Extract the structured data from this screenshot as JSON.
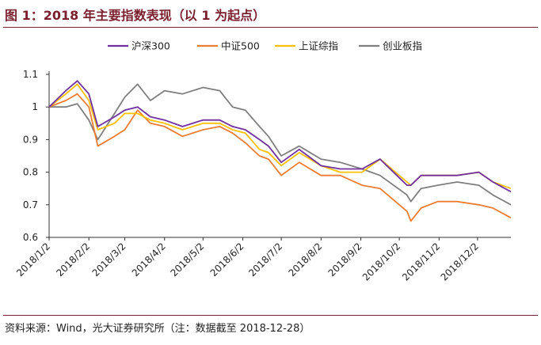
{
  "title": "图 1：2018 年主要指数表现（以 1 为起点）",
  "source": "资料来源：Wind，光大证券研究所（注：数据截至 2018-12-28）",
  "chart_data": {
    "type": "line",
    "title": "",
    "xlabel": "",
    "ylabel": "",
    "ylim": [
      0.6,
      1.1
    ],
    "yticks": [
      0.6,
      0.7,
      0.8,
      0.9,
      1,
      1.1
    ],
    "ytick_labels": [
      "0.6",
      "0.7",
      "0.8",
      "0.9",
      "1",
      "1.1"
    ],
    "grid": false,
    "legend_position": "top",
    "x_dates": [
      "2018/1/2",
      "2018/1/15",
      "2018/1/24",
      "2018/2/2",
      "2018/2/9",
      "2018/2/22",
      "2018/3/2",
      "2018/3/12",
      "2018/3/22",
      "2018/4/2",
      "2018/4/16",
      "2018/5/2",
      "2018/5/15",
      "2018/5/25",
      "2018/6/4",
      "2018/6/15",
      "2018/6/22",
      "2018/7/2",
      "2018/7/16",
      "2018/8/2",
      "2018/8/17",
      "2018/9/3",
      "2018/9/17",
      "2018/10/8",
      "2018/10/11",
      "2018/10/19",
      "2018/11/1",
      "2018/11/16",
      "2018/12/3",
      "2018/12/14",
      "2018/12/28"
    ],
    "xtick_labels": [
      "2018/1/2",
      "2018/2/2",
      "2018/3/2",
      "2018/4/2",
      "2018/5/2",
      "2018/6/2",
      "2018/7/2",
      "2018/8/2",
      "2018/9/2",
      "2018/10/2",
      "2018/11/2",
      "2018/12/2"
    ],
    "series": [
      {
        "name": "沪深300",
        "color": "#7030a0",
        "values": [
          1.0,
          1.05,
          1.08,
          1.04,
          0.94,
          0.97,
          0.99,
          1.0,
          0.97,
          0.96,
          0.94,
          0.96,
          0.96,
          0.94,
          0.93,
          0.9,
          0.88,
          0.83,
          0.87,
          0.82,
          0.81,
          0.81,
          0.84,
          0.76,
          0.76,
          0.79,
          0.79,
          0.79,
          0.8,
          0.77,
          0.74
        ]
      },
      {
        "name": "中证500",
        "color": "#ed7d31",
        "values": [
          1.0,
          1.02,
          1.04,
          1.0,
          0.88,
          0.91,
          0.93,
          0.99,
          0.95,
          0.94,
          0.91,
          0.93,
          0.94,
          0.92,
          0.89,
          0.85,
          0.84,
          0.79,
          0.83,
          0.79,
          0.79,
          0.76,
          0.75,
          0.68,
          0.65,
          0.69,
          0.71,
          0.71,
          0.7,
          0.69,
          0.66
        ]
      },
      {
        "name": "上证综指",
        "color": "#ffc000",
        "values": [
          1.0,
          1.04,
          1.07,
          1.02,
          0.93,
          0.95,
          0.98,
          0.98,
          0.96,
          0.95,
          0.93,
          0.95,
          0.95,
          0.93,
          0.92,
          0.87,
          0.86,
          0.82,
          0.86,
          0.82,
          0.8,
          0.8,
          0.84,
          0.77,
          0.76,
          0.79,
          0.79,
          0.79,
          0.8,
          0.77,
          0.75
        ]
      },
      {
        "name": "创业板指",
        "color": "#7f7f7f",
        "values": [
          1.0,
          1.0,
          1.01,
          0.96,
          0.9,
          0.98,
          1.03,
          1.07,
          1.02,
          1.05,
          1.04,
          1.06,
          1.05,
          1.0,
          0.99,
          0.94,
          0.91,
          0.85,
          0.88,
          0.84,
          0.83,
          0.81,
          0.79,
          0.73,
          0.71,
          0.75,
          0.76,
          0.77,
          0.76,
          0.73,
          0.7
        ]
      }
    ]
  }
}
